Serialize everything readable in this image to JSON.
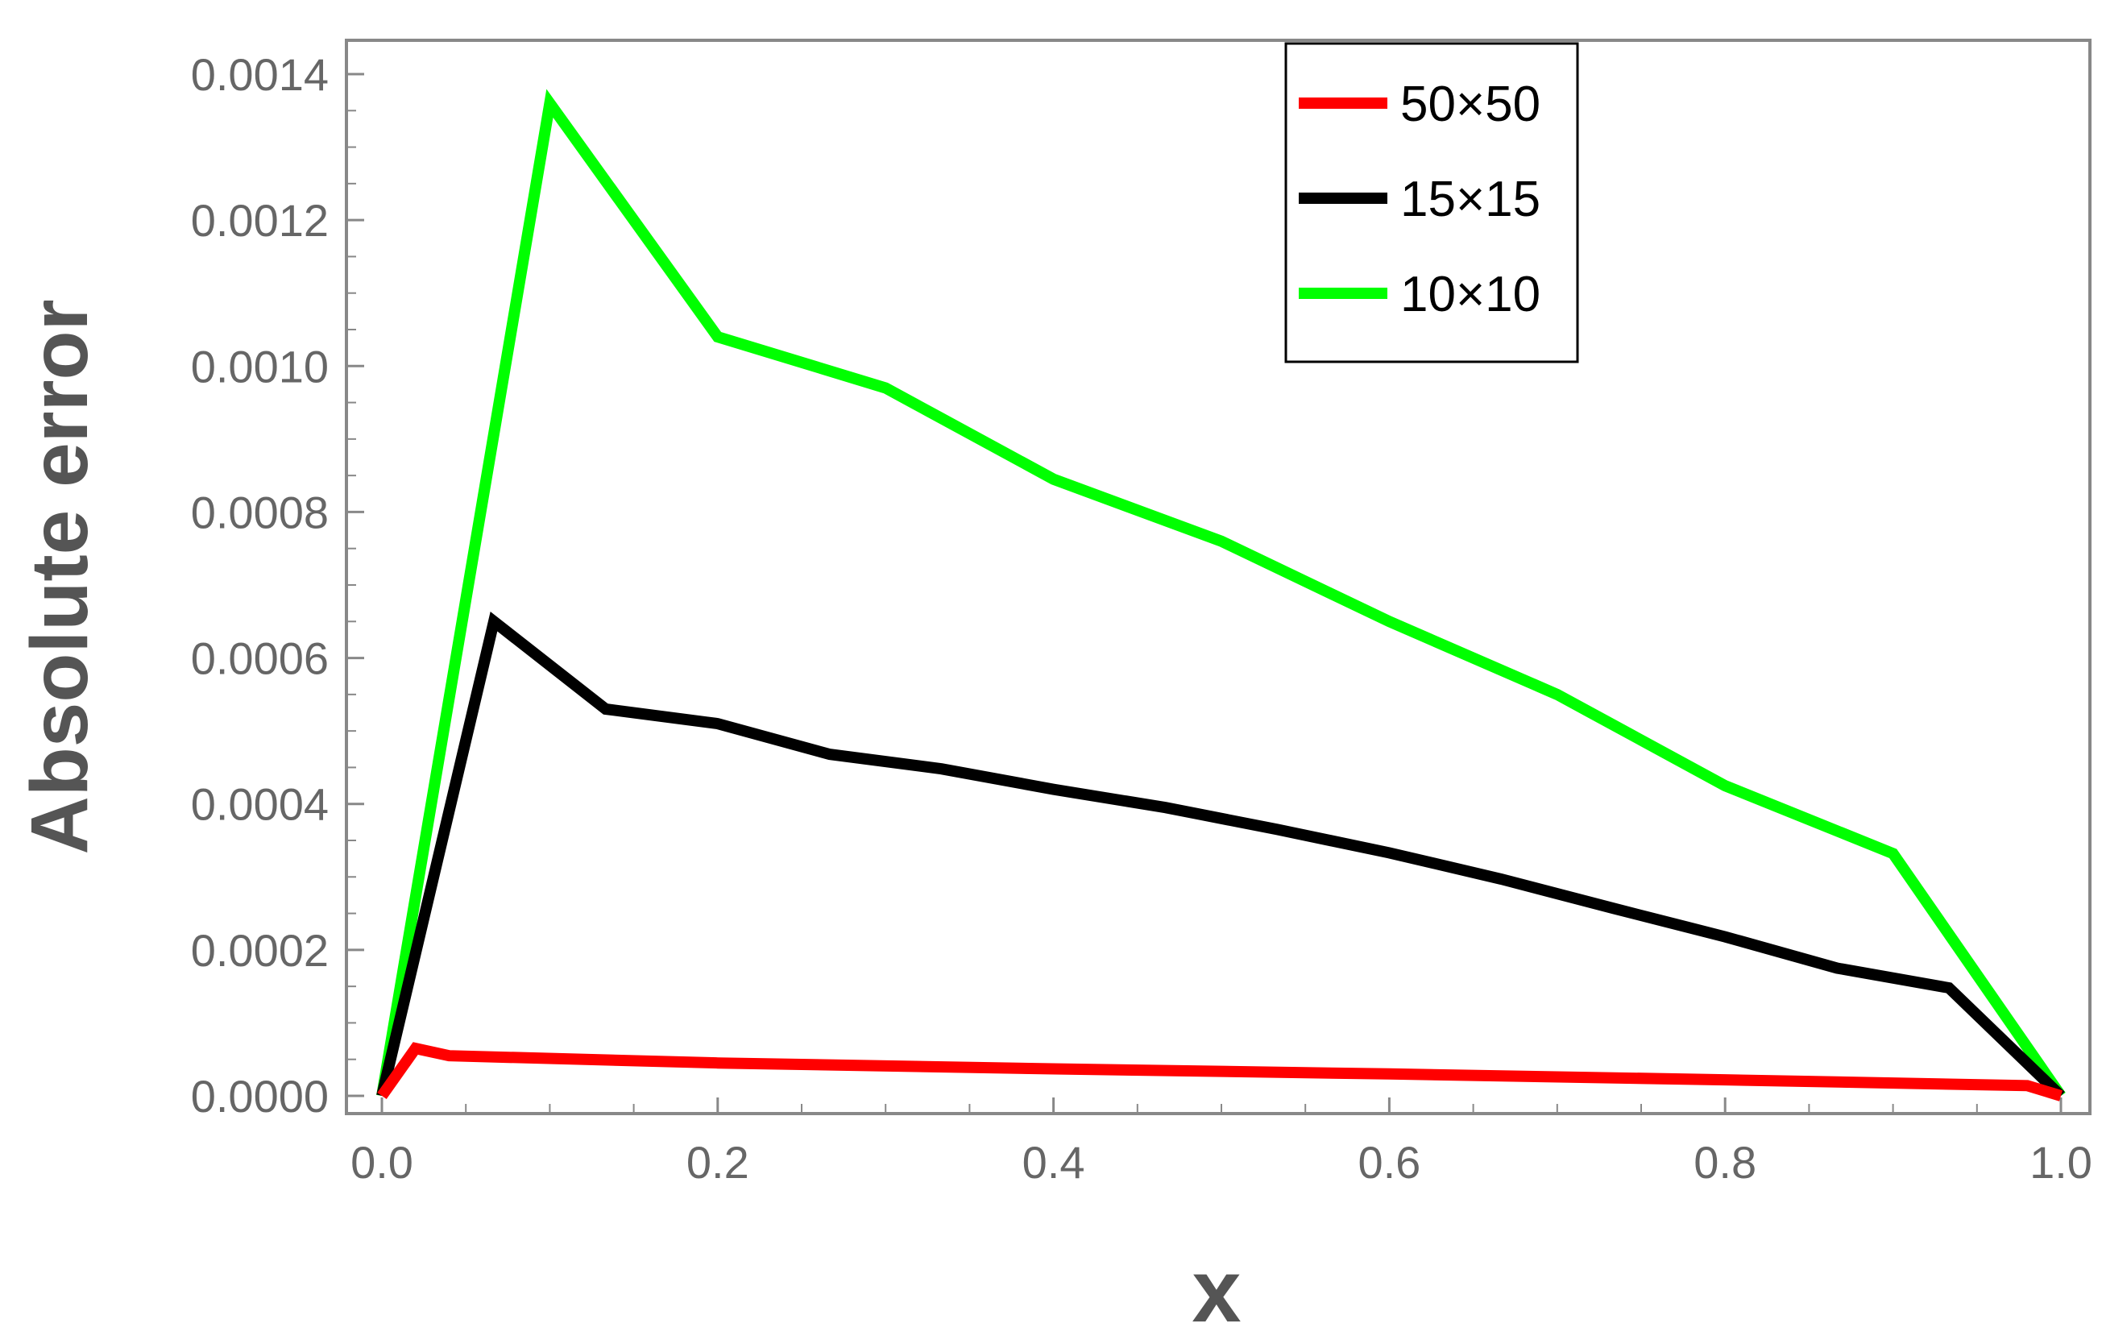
{
  "chart_data": {
    "type": "line",
    "xlabel": "x",
    "ylabel": "Absolute error",
    "xlim": [
      0.0,
      1.0
    ],
    "ylim": [
      0.0,
      0.0014
    ],
    "x_ticks": [
      "0.0",
      "0.2",
      "0.4",
      "0.6",
      "0.8",
      "1.0"
    ],
    "y_ticks": [
      "0.0000",
      "0.0002",
      "0.0004",
      "0.0006",
      "0.0008",
      "0.0010",
      "0.0012",
      "0.0014"
    ],
    "x_tick_values": [
      0,
      0.2,
      0.4,
      0.6,
      0.8,
      1.0
    ],
    "y_tick_values": [
      0,
      0.0002,
      0.0004,
      0.0006,
      0.0008,
      0.001,
      0.0012,
      0.0014
    ],
    "legend_position": "top-right",
    "grid": false,
    "series": [
      {
        "name": "50×50",
        "color": "#ff0000",
        "x": [
          0,
          0.02,
          0.04,
          0.2,
          0.4,
          0.6,
          0.8,
          0.98,
          1.0
        ],
        "y": [
          0,
          6.5e-05,
          5.5e-05,
          4.5e-05,
          3.7e-05,
          3e-05,
          2.2e-05,
          1.4e-05,
          0
        ]
      },
      {
        "name": "15×15",
        "color": "#000000",
        "x": [
          0,
          0.0667,
          0.1333,
          0.2,
          0.2667,
          0.3333,
          0.4,
          0.4667,
          0.5333,
          0.6,
          0.6667,
          0.7333,
          0.8,
          0.8667,
          0.9333,
          1.0
        ],
        "y": [
          0,
          0.00065,
          0.00053,
          0.00051,
          0.000468,
          0.000448,
          0.00042,
          0.000395,
          0.000365,
          0.000333,
          0.000297,
          0.000257,
          0.000218,
          0.000175,
          0.000148,
          0
        ]
      },
      {
        "name": "10×10",
        "color": "#00ff00",
        "x": [
          0,
          0.1,
          0.2,
          0.3,
          0.4,
          0.5,
          0.6,
          0.7,
          0.8,
          0.9,
          1.0
        ],
        "y": [
          0,
          0.00136,
          0.00104,
          0.00097,
          0.000845,
          0.00076,
          0.00065,
          0.00055,
          0.000425,
          0.000332,
          0
        ]
      }
    ]
  }
}
